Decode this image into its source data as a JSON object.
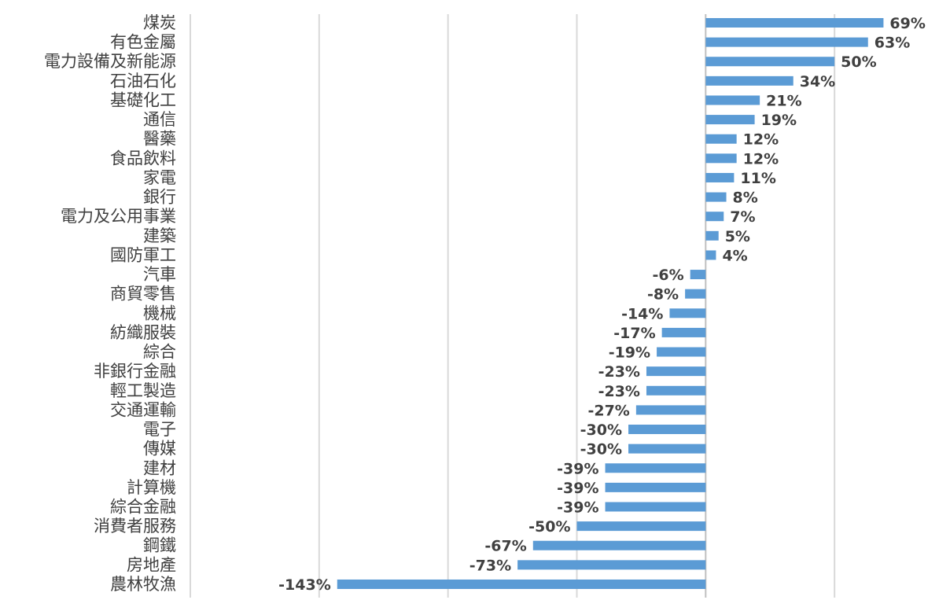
{
  "chart_data": {
    "type": "bar",
    "orientation": "horizontal",
    "title": "",
    "xlabel": "",
    "ylabel": "",
    "value_suffix": "%",
    "bar_color": "#5b9bd5",
    "grid": true,
    "legend": "none",
    "xlim": [
      -200,
      100
    ],
    "x_gridlines": [
      -200,
      -150,
      -100,
      -50,
      0,
      50,
      100
    ],
    "categories": [
      "煤炭",
      "有色金屬",
      "電力設備及新能源",
      "石油石化",
      "基礎化工",
      "通信",
      "醫藥",
      "食品飲料",
      "家電",
      "銀行",
      "電力及公用事業",
      "建築",
      "國防軍工",
      "汽車",
      "商貿零售",
      "機械",
      "紡織服裝",
      "綜合",
      "非銀行金融",
      "輕工製造",
      "交通運輸",
      "電子",
      "傳媒",
      "建材",
      "計算機",
      "綜合金融",
      "消費者服務",
      "鋼鐵",
      "房地產",
      "農林牧漁"
    ],
    "values": [
      69,
      63,
      50,
      34,
      21,
      19,
      12,
      12,
      11,
      8,
      7,
      5,
      4,
      -6,
      -8,
      -14,
      -17,
      -19,
      -23,
      -23,
      -27,
      -30,
      -30,
      -39,
      -39,
      -39,
      -50,
      -67,
      -73,
      -143
    ]
  }
}
